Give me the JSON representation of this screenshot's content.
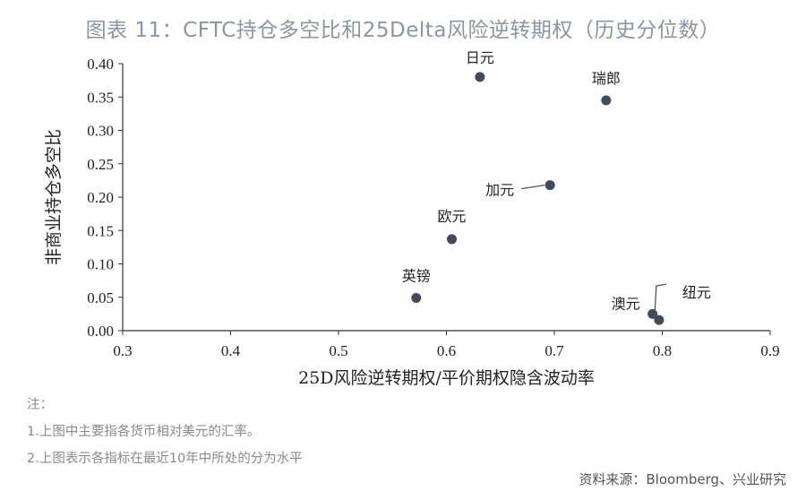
{
  "title": "图表 11：CFTC持仓多空比和25Delta风险逆转期权（历史分位数）",
  "chart_data": {
    "type": "scatter",
    "xlabel": "25D风险逆转期权/平价期权隐含波动率",
    "ylabel": "非商业持仓多空比",
    "xlim": [
      0.3,
      0.9
    ],
    "ylim": [
      0.0,
      0.4
    ],
    "x_ticks": [
      "0.3",
      "0.4",
      "0.5",
      "0.6",
      "0.7",
      "0.8",
      "0.9"
    ],
    "y_ticks": [
      "0.00",
      "0.05",
      "0.10",
      "0.15",
      "0.20",
      "0.25",
      "0.30",
      "0.35",
      "0.40"
    ],
    "grid": false,
    "point_color": "#424b5c",
    "points": [
      {
        "label": "日元",
        "x": 0.631,
        "y": 0.38
      },
      {
        "label": "瑞郎",
        "x": 0.748,
        "y": 0.345
      },
      {
        "label": "加元",
        "x": 0.696,
        "y": 0.218
      },
      {
        "label": "欧元",
        "x": 0.605,
        "y": 0.137
      },
      {
        "label": "英镑",
        "x": 0.572,
        "y": 0.049
      },
      {
        "label": "澳元",
        "x": 0.791,
        "y": 0.025
      },
      {
        "label": "纽元",
        "x": 0.797,
        "y": 0.016
      }
    ]
  },
  "notes": [
    "注：",
    "1.上图中主要指各货币相对美元的汇率。",
    "2.上图表示各指标在最近10年中所处的分为水平"
  ],
  "source": "资料来源：Bloomberg、兴业研究"
}
